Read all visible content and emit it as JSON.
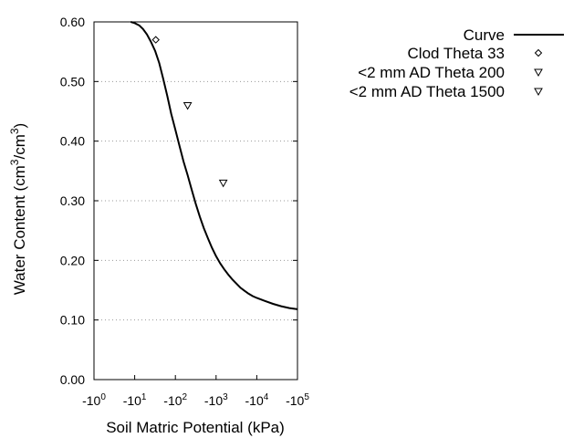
{
  "chart_data": {
    "type": "scatter",
    "xlabel": "Soil Matric Potential (kPa)",
    "ylabel": "Water Content (cm3/cm3)",
    "ylabel_parts": {
      "main": "Water Content (cm",
      "sup1": "3",
      "mid": "/cm",
      "sup2": "3",
      "end": ")"
    },
    "x_scale": "log (negative values)",
    "xlim": [
      -1,
      -100000
    ],
    "ylim": [
      0,
      0.6
    ],
    "grid": "horizontal dotted",
    "legend_position": "top-right, outside plot",
    "x_ticks": [
      {
        "value": 0,
        "base": "-10",
        "exp": "0"
      },
      {
        "value": 1,
        "base": "-10",
        "exp": "1"
      },
      {
        "value": 2,
        "base": "-10",
        "exp": "2"
      },
      {
        "value": 3,
        "base": "-10",
        "exp": "3"
      },
      {
        "value": 4,
        "base": "-10",
        "exp": "4"
      },
      {
        "value": 5,
        "base": "-10",
        "exp": "5"
      }
    ],
    "y_ticks": [
      "0.00",
      "0.10",
      "0.20",
      "0.30",
      "0.40",
      "0.50",
      "0.60"
    ],
    "series": [
      {
        "name": "Curve",
        "kind": "line",
        "color": "#000000",
        "x": [
          -8,
          -10,
          -13,
          -16,
          -20,
          -25,
          -32,
          -40,
          -50,
          -63,
          -79,
          -100,
          -126,
          -158,
          -200,
          -251,
          -316,
          -398,
          -501,
          -631,
          -794,
          -1000,
          -1259,
          -1585,
          -1995,
          -2512,
          -3162,
          -3981,
          -5012,
          -6310,
          -7943,
          -10000,
          -15849,
          -25119,
          -39811,
          -63096,
          -100000
        ],
        "y": [
          0.6,
          0.598,
          0.594,
          0.588,
          0.579,
          0.567,
          0.551,
          0.531,
          0.505,
          0.476,
          0.446,
          0.419,
          0.392,
          0.366,
          0.343,
          0.319,
          0.295,
          0.273,
          0.254,
          0.237,
          0.221,
          0.207,
          0.195,
          0.185,
          0.176,
          0.168,
          0.161,
          0.154,
          0.149,
          0.144,
          0.14,
          0.137,
          0.132,
          0.127,
          0.123,
          0.12,
          0.118
        ]
      },
      {
        "name": "Clod Theta 33",
        "kind": "points",
        "marker": "diamond",
        "x": [
          -33
        ],
        "y": [
          0.57
        ]
      },
      {
        "name": "<2 mm AD Theta 200",
        "kind": "points",
        "marker": "triangle-down",
        "x": [
          -200
        ],
        "y": [
          0.46
        ]
      },
      {
        "name": "<2 mm AD Theta 1500",
        "kind": "points",
        "marker": "triangle-down",
        "x": [
          -1500
        ],
        "y": [
          0.33
        ]
      }
    ]
  }
}
